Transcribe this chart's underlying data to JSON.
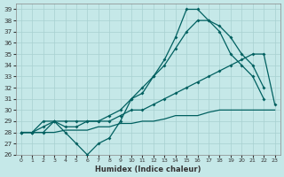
{
  "xlabel": "Humidex (Indice chaleur)",
  "xlim": [
    -0.5,
    23.5
  ],
  "ylim": [
    26,
    39.5
  ],
  "yticks": [
    26,
    27,
    28,
    29,
    30,
    31,
    32,
    33,
    34,
    35,
    36,
    37,
    38,
    39
  ],
  "xticks": [
    0,
    1,
    2,
    3,
    4,
    5,
    6,
    7,
    8,
    9,
    10,
    11,
    12,
    13,
    14,
    15,
    16,
    17,
    18,
    19,
    20,
    21,
    22,
    23
  ],
  "bg_color": "#c5e8e8",
  "grid_color": "#a8d0d0",
  "line_color": "#006060",
  "line1_x": [
    0,
    1,
    2,
    3,
    4,
    5,
    6,
    7,
    8,
    9,
    10,
    11,
    12,
    13,
    14,
    15,
    16,
    17,
    18,
    19,
    20,
    21,
    22
  ],
  "line1_y": [
    28,
    28,
    28,
    29,
    28,
    27,
    26,
    27,
    27.5,
    29,
    31,
    31.5,
    33,
    34.5,
    36.5,
    39,
    39,
    38,
    37,
    35,
    34,
    33,
    31
  ],
  "line2_x": [
    0,
    1,
    2,
    3,
    4,
    5,
    6,
    7,
    8,
    9,
    10,
    11,
    12,
    13,
    14,
    15,
    16,
    17,
    18,
    19,
    20,
    21,
    22
  ],
  "line2_y": [
    28,
    28,
    29,
    29,
    28.5,
    28.5,
    29,
    29,
    29.5,
    30,
    31,
    32,
    33,
    34,
    35.5,
    37,
    38,
    38,
    37.5,
    36.5,
    35,
    34,
    32
  ],
  "line3_x": [
    0,
    1,
    2,
    3,
    4,
    5,
    6,
    7,
    8,
    9,
    10,
    11,
    12,
    13,
    14,
    15,
    16,
    17,
    18,
    19,
    20,
    21,
    22,
    23
  ],
  "line3_y": [
    28,
    28,
    28.5,
    29,
    29,
    29,
    29,
    29,
    29,
    29.5,
    30,
    30,
    30.5,
    31,
    31.5,
    32,
    32.5,
    33,
    33.5,
    34,
    34.5,
    35,
    35,
    30.5
  ],
  "line4_x": [
    0,
    1,
    2,
    3,
    4,
    5,
    6,
    7,
    8,
    9,
    10,
    11,
    12,
    13,
    14,
    15,
    16,
    17,
    18,
    19,
    20,
    21,
    22,
    23
  ],
  "line4_y": [
    28,
    28,
    28,
    28,
    28.2,
    28.2,
    28.2,
    28.5,
    28.5,
    28.8,
    28.8,
    29,
    29,
    29.2,
    29.5,
    29.5,
    29.5,
    29.8,
    30,
    30,
    30,
    30,
    30,
    30
  ]
}
